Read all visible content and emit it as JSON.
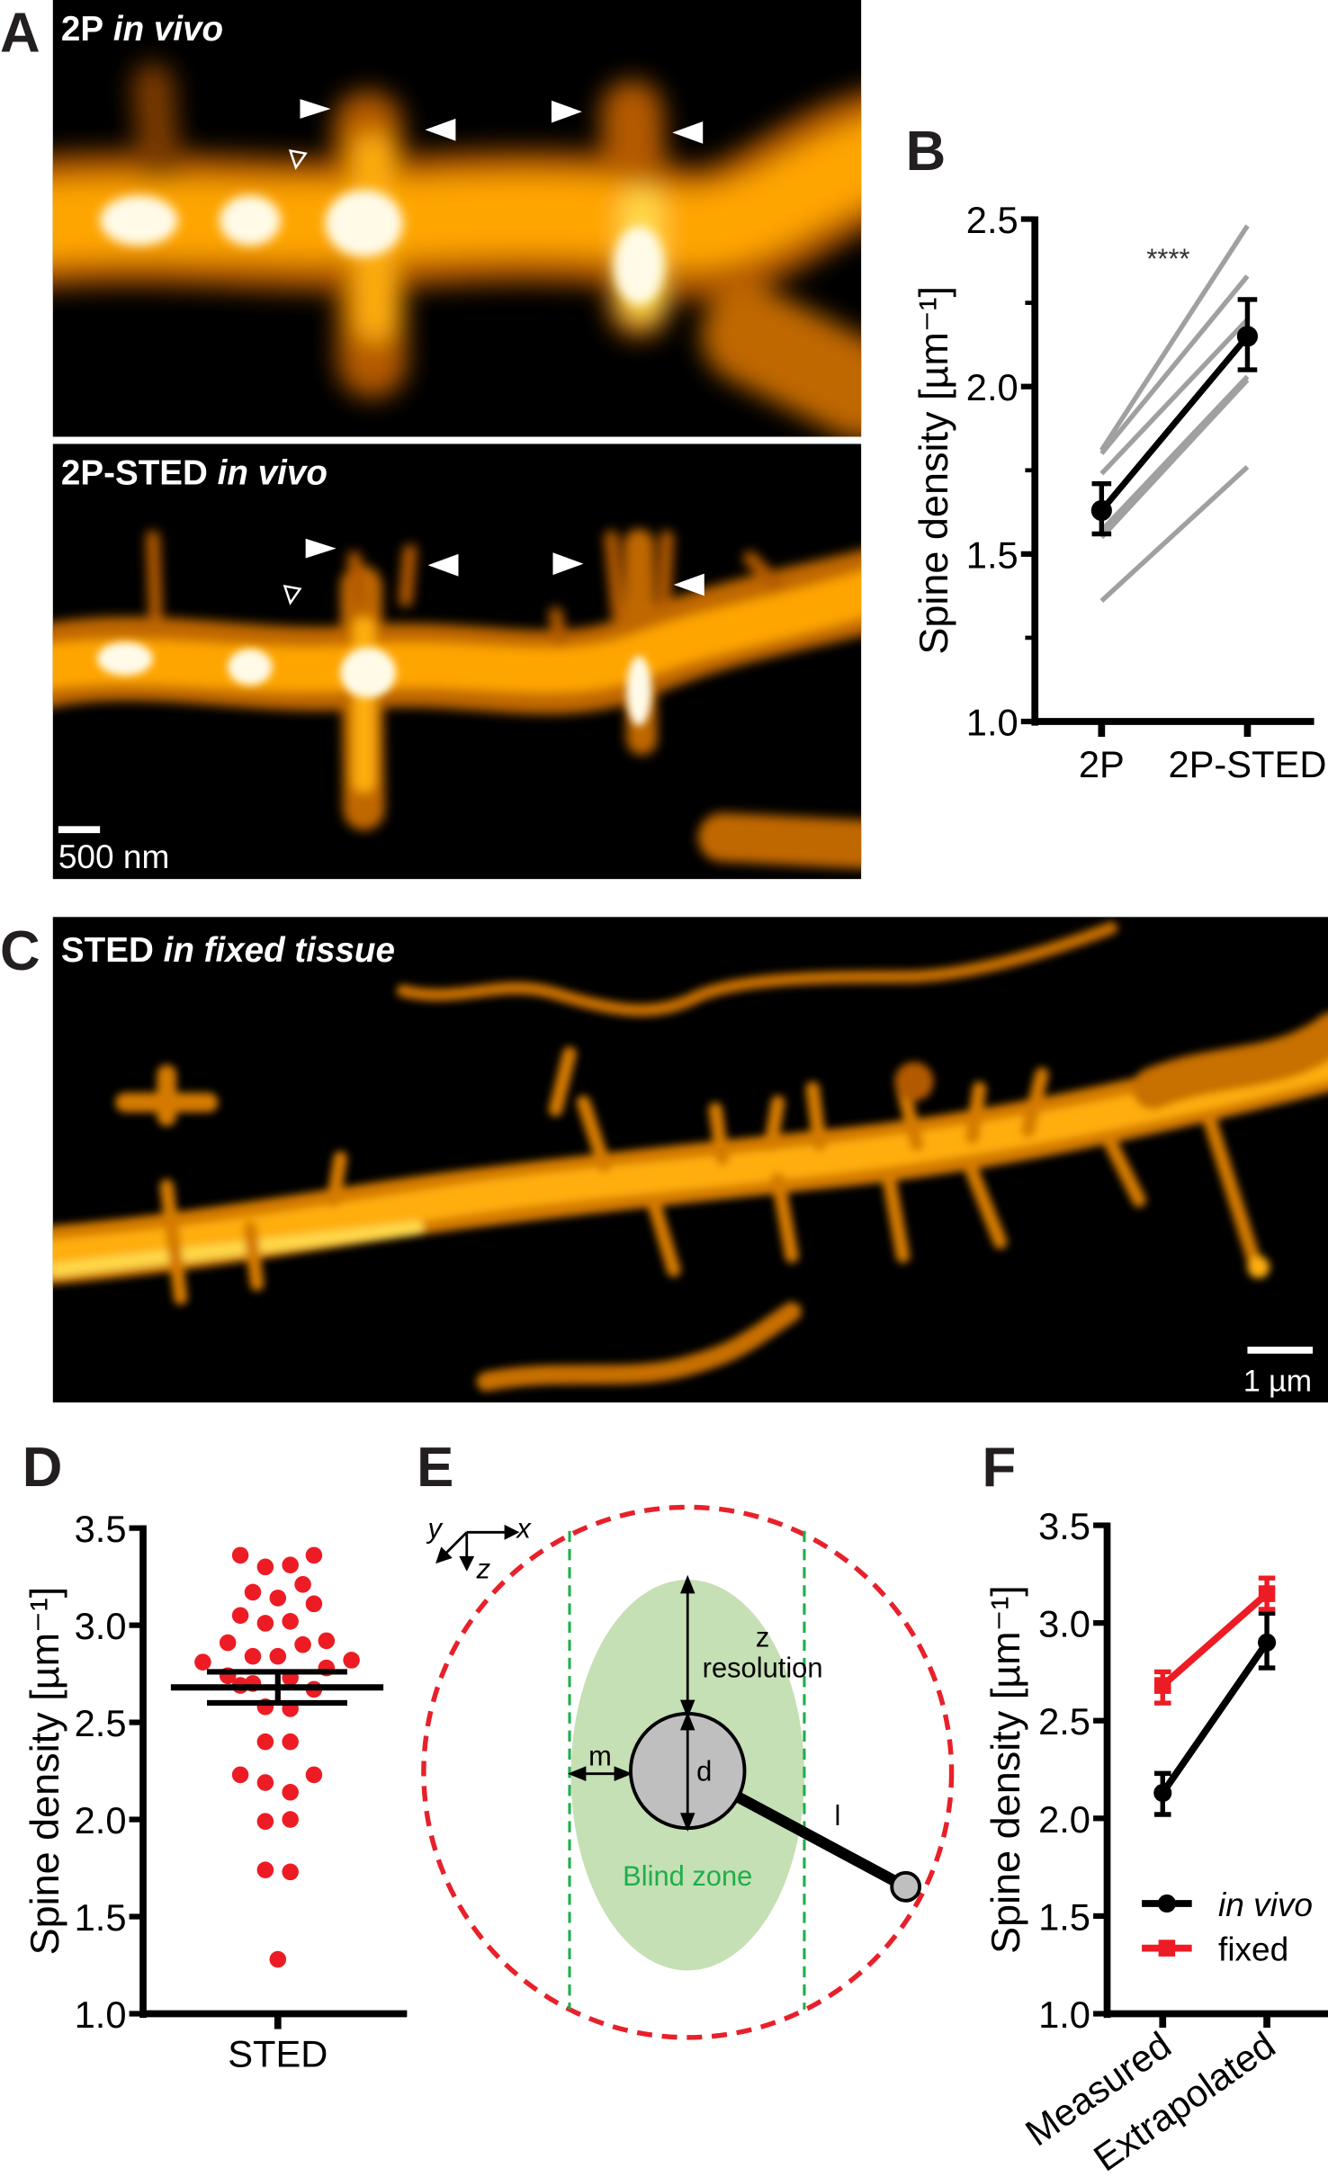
{
  "figure": {
    "panel_labels": {
      "a": "A",
      "b": "B",
      "c": "C",
      "d": "D",
      "e": "E",
      "f": "F"
    },
    "panel_a": {
      "top_title_bold": "2P",
      "top_title_italic": "in vivo",
      "bottom_title_bold": "2P-STED",
      "bottom_title_italic": "in vivo",
      "scale_bar": "500 nm",
      "arrowhead_color": "#ffffff",
      "image_colors": [
        "#000000",
        "#b35a00",
        "#ffa500",
        "#ffd84a",
        "#fffbe8"
      ]
    },
    "panel_c": {
      "title_bold": "STED",
      "title_italic": "in fixed tissue",
      "scale_bar": "1 µm"
    },
    "panel_e": {
      "axis_x": "x",
      "axis_y": "y",
      "axis_z": "z",
      "z_label_line1": "z",
      "z_label_line2": "resolution",
      "m_label": "m",
      "d_label": "d",
      "l_label": "l",
      "blind_zone_label": "Blind zone",
      "colors": {
        "outer_circle": "#e8202a",
        "blind_zone_fill": "#c5e0b4",
        "blind_zone_text": "#1fae4b",
        "guide_lines": "#1fae4b",
        "spine_head": "#bfbfbf"
      }
    }
  },
  "chart_data": [
    {
      "panel": "B",
      "type": "line",
      "categories": [
        "2P",
        "2P-STED"
      ],
      "ylabel": "Spine density [µm⁻¹]",
      "ylim": [
        1.0,
        2.5
      ],
      "yticks": [
        "1.0",
        "1.5",
        "2.0",
        "2.5"
      ],
      "annotation": "****",
      "individual_series": [
        [
          1.81,
          2.48
        ],
        [
          1.8,
          2.33
        ],
        [
          1.74,
          2.2
        ],
        [
          1.57,
          2.03
        ],
        [
          1.55,
          2.02
        ],
        [
          1.36,
          1.76
        ]
      ],
      "mean": [
        1.63,
        2.15
      ],
      "error_low": [
        1.56,
        2.05
      ],
      "error_high": [
        1.71,
        2.26
      ],
      "colors": {
        "individual": "#a0a0a0",
        "mean": "#000000"
      }
    },
    {
      "panel": "D",
      "type": "scatter",
      "categories": [
        "STED"
      ],
      "ylabel": "Spine density [µm⁻¹]",
      "ylim": [
        1.0,
        3.5
      ],
      "yticks": [
        "1.0",
        "1.5",
        "2.0",
        "2.5",
        "3.0",
        "3.5"
      ],
      "values": [
        3.36,
        3.36,
        3.3,
        3.31,
        3.21,
        3.17,
        3.14,
        3.11,
        3.05,
        3.01,
        3.02,
        2.91,
        2.9,
        2.92,
        2.81,
        2.84,
        2.84,
        2.82,
        2.78,
        2.74,
        2.69,
        2.7,
        2.73,
        2.67,
        2.58,
        2.57,
        2.4,
        2.4,
        2.23,
        2.23,
        2.19,
        2.14,
        1.99,
        2.0,
        1.74,
        1.73,
        1.28
      ],
      "mean": 2.68,
      "error_low": 2.6,
      "error_high": 2.76,
      "colors": {
        "points": "#ed1c24",
        "mean": "#000000"
      }
    },
    {
      "panel": "F",
      "type": "line",
      "categories": [
        "Measured",
        "Extrapolated"
      ],
      "ylabel": "Spine density [µm⁻¹]",
      "ylim": [
        1.0,
        3.5
      ],
      "yticks": [
        "1.0",
        "1.5",
        "2.0",
        "2.5",
        "3.0",
        "3.5"
      ],
      "legend_placement": "bottom-right",
      "series": [
        {
          "name": "in vivo",
          "values": [
            2.13,
            2.9
          ],
          "error_low": [
            2.02,
            2.77
          ],
          "error_high": [
            2.23,
            3.05
          ],
          "color": "#000000",
          "marker": "circle"
        },
        {
          "name": "fixed",
          "values": [
            2.68,
            3.15
          ],
          "error_low": [
            2.59,
            3.07
          ],
          "error_high": [
            2.75,
            3.23
          ],
          "color": "#ed1c24",
          "marker": "square"
        }
      ]
    }
  ]
}
